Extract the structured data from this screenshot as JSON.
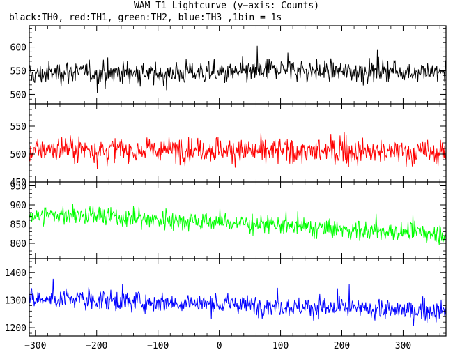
{
  "title": "WAM T1 Lightcurve (y−axis: Counts)",
  "subtitle": "black:TH0, red:TH1, green:TH2, blue:TH3 ,1bin = 1s",
  "chart_data": {
    "type": "line",
    "title": "WAM T1 Lightcurve (y−axis: Counts)",
    "subtitle": "black:TH0, red:TH1, green:TH2, blue:TH3 ,1bin = 1s",
    "xlabel": "",
    "ylabel": "Counts",
    "xlim": [
      -310,
      370
    ],
    "x_ticks": [
      -300,
      -200,
      -100,
      0,
      100,
      200,
      300
    ],
    "grid": false,
    "panels": [
      {
        "name": "TH0",
        "color": "#000000",
        "ylim": [
          480,
          645
        ],
        "y_ticks": [
          500,
          550,
          600
        ],
        "mean_start": 545,
        "mean_end": 548,
        "noise_sd": 24,
        "x": [
          -310,
          -250,
          -200,
          -150,
          -100,
          -50,
          0,
          50,
          100,
          150,
          200,
          250,
          300,
          370
        ],
        "y": [
          540,
          548,
          545,
          546,
          542,
          548,
          544,
          546,
          555,
          550,
          548,
          550,
          548,
          546
        ],
        "y_min": 482,
        "y_max": 640
      },
      {
        "name": "TH1",
        "color": "#ff0000",
        "ylim": [
          450,
          590
        ],
        "y_ticks": [
          450,
          500,
          550
        ],
        "mean_start": 508,
        "mean_end": 504,
        "noise_sd": 23,
        "x": [
          -310,
          -250,
          -200,
          -150,
          -100,
          -50,
          0,
          50,
          100,
          150,
          200,
          250,
          300,
          370
        ],
        "y": [
          505,
          510,
          508,
          507,
          506,
          510,
          508,
          505,
          506,
          504,
          505,
          503,
          504,
          502
        ],
        "y_min": 450,
        "y_max": 585
      },
      {
        "name": "TH2",
        "color": "#00ff00",
        "ylim": [
          760,
          960
        ],
        "y_ticks": [
          800,
          850,
          900,
          950
        ],
        "mean_start": 875,
        "mean_end": 825,
        "noise_sd": 26,
        "x": [
          -310,
          -250,
          -200,
          -150,
          -100,
          -50,
          0,
          50,
          100,
          150,
          200,
          250,
          300,
          370
        ],
        "y": [
          872,
          875,
          870,
          866,
          862,
          858,
          856,
          852,
          845,
          840,
          836,
          832,
          828,
          826
        ],
        "y_min": 762,
        "y_max": 955
      },
      {
        "name": "TH3",
        "color": "#0000ff",
        "ylim": [
          1170,
          1450
        ],
        "y_ticks": [
          1200,
          1300,
          1400
        ],
        "mean_start": 1305,
        "mean_end": 1255,
        "noise_sd": 36,
        "x": [
          -310,
          -250,
          -200,
          -150,
          -100,
          -50,
          0,
          50,
          100,
          150,
          200,
          250,
          300,
          370
        ],
        "y": [
          1300,
          1305,
          1300,
          1296,
          1292,
          1290,
          1286,
          1282,
          1278,
          1274,
          1270,
          1266,
          1262,
          1258
        ],
        "y_min": 1172,
        "y_max": 1445
      }
    ]
  }
}
